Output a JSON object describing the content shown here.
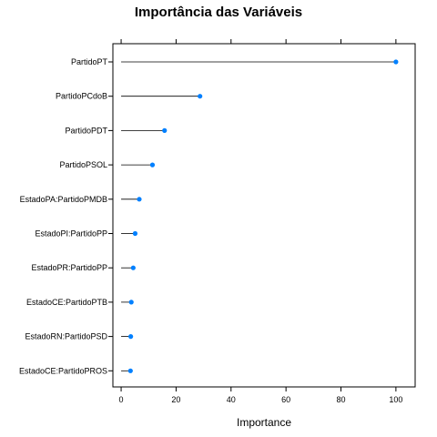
{
  "chart_data": {
    "type": "dotplot",
    "title": "Importância das Variáveis",
    "xlabel": "Importance",
    "ylabel": "",
    "xlim": [
      -3,
      107
    ],
    "xticks": [
      0,
      20,
      40,
      60,
      80,
      100
    ],
    "grid": false,
    "legend": "none",
    "point_color": "#0080ff",
    "line_color": "#000000",
    "categories": [
      "PartidoPT",
      "PartidoPCdoB",
      "PartidoPDT",
      "PartidoPSOL",
      "EstadoPA:PartidoPMDB",
      "EstadoPI:PartidoPP",
      "EstadoPR:PartidoPP",
      "EstadoCE:PartidoPTB",
      "EstadoRN:PartidoPSD",
      "EstadoCE:PartidoPROS"
    ],
    "values": [
      100,
      28.7,
      15.8,
      11.4,
      6.6,
      5.1,
      4.4,
      3.7,
      3.5,
      3.4
    ]
  }
}
